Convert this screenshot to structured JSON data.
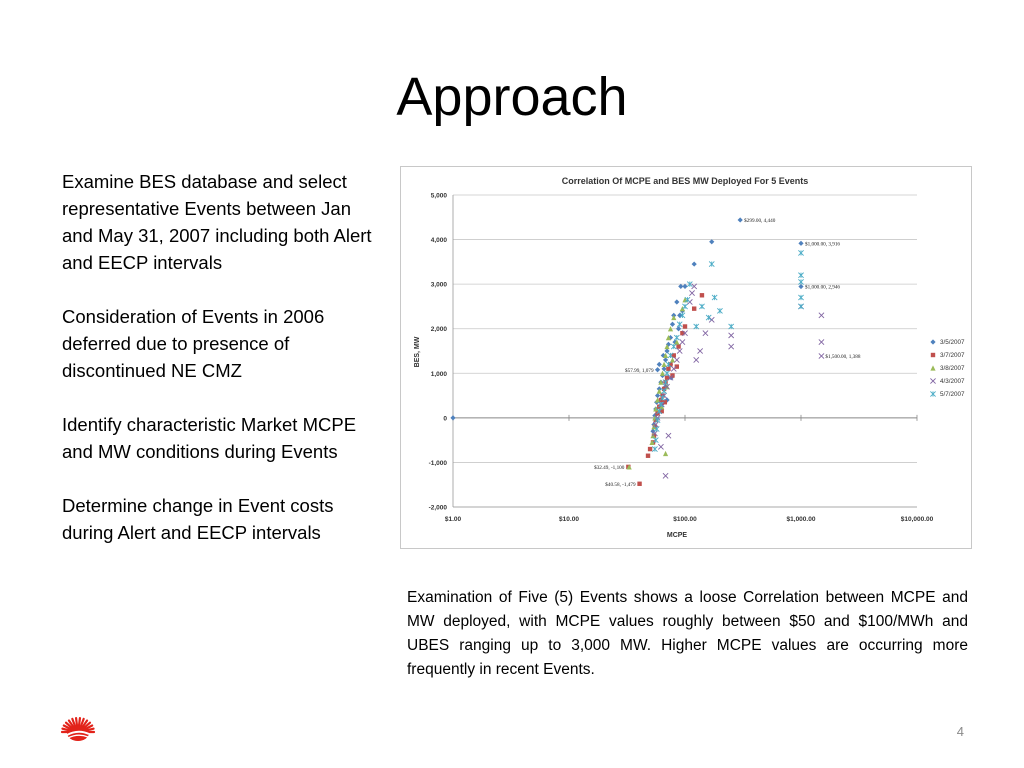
{
  "slide": {
    "title": "Approach",
    "bullets": [
      "Examine BES database and select representative Events between Jan and May 31, 2007 including both Alert and EECP intervals",
      "Consideration of Events in 2006 deferred due to presence of discontinued NE CMZ",
      "Identify characteristic Market MCPE and MW conditions during Events",
      "Determine change in Event costs during Alert and EECP intervals"
    ],
    "caption": "Examination of Five (5) Events shows a loose Correlation between MCPE and MW deployed, with MCPE values roughly between $50 and $100/MWh and UBES ranging up to 3,000 MW. Higher MCPE values are occurring more frequently in recent Events.",
    "page_number": "4",
    "logo_icon": "red-sunburst-logo-icon"
  },
  "chart_data": {
    "type": "scatter",
    "title": "Correlation Of MCPE and BES MW Deployed For 5 Events",
    "xlabel": "MCPE",
    "ylabel": "BES, MW",
    "x_scale": "log",
    "xlim": [
      1,
      10000
    ],
    "ylim": [
      -2000,
      5000
    ],
    "x_ticks": [
      1,
      10,
      100,
      1000,
      10000
    ],
    "x_tick_labels": [
      "$1.00",
      "$10.00",
      "$100.00",
      "$1,000.00",
      "$10,000.00"
    ],
    "y_ticks": [
      -2000,
      -1000,
      0,
      1000,
      2000,
      3000,
      4000,
      5000
    ],
    "y_tick_labels": [
      "-2,000",
      "-1,000",
      "0",
      "1,000",
      "2,000",
      "3,000",
      "4,000",
      "5,000"
    ],
    "grid": "horizontal",
    "legend_position": "right",
    "series": [
      {
        "name": "3/5/2007",
        "color": "#4f81bd",
        "marker": "diamond",
        "points": [
          [
            1,
            0
          ],
          [
            299,
            4440
          ],
          [
            1000,
            3916
          ],
          [
            1000,
            2946
          ],
          [
            170,
            3950
          ],
          [
            120,
            3450
          ],
          [
            100,
            2950
          ],
          [
            92,
            2950
          ],
          [
            85,
            2600
          ],
          [
            80,
            2300
          ],
          [
            78,
            2100
          ],
          [
            75,
            1800
          ],
          [
            72,
            1650
          ],
          [
            70,
            1500
          ],
          [
            68,
            1300
          ],
          [
            66,
            1100
          ],
          [
            64,
            950
          ],
          [
            62,
            800
          ],
          [
            60,
            650
          ],
          [
            58,
            500
          ],
          [
            57,
            350
          ],
          [
            56,
            200
          ],
          [
            55,
            50
          ],
          [
            54,
            -150
          ],
          [
            53,
            -300
          ],
          [
            60,
            1200
          ],
          [
            65,
            1400
          ],
          [
            75,
            1200
          ],
          [
            68,
            700
          ],
          [
            63,
            300
          ],
          [
            58,
            100
          ],
          [
            90,
            2300
          ],
          [
            82,
            1700
          ],
          [
            76,
            900
          ],
          [
            70,
            400
          ],
          [
            95,
            2400
          ],
          [
            88,
            2000
          ],
          [
            57.99,
            1079
          ]
        ]
      },
      {
        "name": "3/7/2007",
        "color": "#c0504d",
        "marker": "square",
        "points": [
          [
            32.49,
            -1100
          ],
          [
            40.58,
            -1479
          ],
          [
            140,
            2750
          ],
          [
            120,
            2450
          ],
          [
            95,
            1900
          ],
          [
            88,
            1600
          ],
          [
            80,
            1400
          ],
          [
            75,
            1200
          ],
          [
            72,
            1100
          ],
          [
            70,
            900
          ],
          [
            68,
            800
          ],
          [
            66,
            650
          ],
          [
            64,
            500
          ],
          [
            62,
            400
          ],
          [
            60,
            250
          ],
          [
            58,
            100
          ],
          [
            56,
            -50
          ],
          [
            55,
            -200
          ],
          [
            54,
            -400
          ],
          [
            53,
            -550
          ],
          [
            50,
            -700
          ],
          [
            48,
            -850
          ],
          [
            100,
            2050
          ],
          [
            85,
            1150
          ],
          [
            78,
            950
          ],
          [
            67,
            350
          ],
          [
            63,
            150
          ]
        ]
      },
      {
        "name": "3/8/2007",
        "color": "#9bbb59",
        "marker": "triangle",
        "points": [
          [
            33,
            -1100
          ],
          [
            68,
            -800
          ],
          [
            100,
            2650
          ],
          [
            95,
            2450
          ],
          [
            80,
            2250
          ],
          [
            75,
            2000
          ],
          [
            72,
            1800
          ],
          [
            70,
            1600
          ],
          [
            68,
            1400
          ],
          [
            66,
            1200
          ],
          [
            64,
            1000
          ],
          [
            62,
            800
          ],
          [
            60,
            600
          ],
          [
            58,
            400
          ],
          [
            56,
            200
          ],
          [
            55,
            0
          ],
          [
            54,
            -200
          ],
          [
            53,
            -400
          ],
          [
            52,
            -550
          ],
          [
            85,
            1700
          ],
          [
            78,
            1300
          ],
          [
            70,
            700
          ],
          [
            63,
            250
          ]
        ]
      },
      {
        "name": "4/3/2007",
        "color": "#8064a2",
        "marker": "x",
        "points": [
          [
            1500,
            1388
          ],
          [
            1500,
            2300
          ],
          [
            1500,
            1700
          ],
          [
            1000,
            2500
          ],
          [
            250,
            1850
          ],
          [
            250,
            1600
          ],
          [
            170,
            2200
          ],
          [
            150,
            1900
          ],
          [
            135,
            1500
          ],
          [
            125,
            1300
          ],
          [
            120,
            2950
          ],
          [
            115,
            2800
          ],
          [
            110,
            2600
          ],
          [
            100,
            1900
          ],
          [
            95,
            1700
          ],
          [
            90,
            1500
          ],
          [
            85,
            1300
          ],
          [
            80,
            1100
          ],
          [
            75,
            900
          ],
          [
            70,
            700
          ],
          [
            66,
            500
          ],
          [
            63,
            300
          ],
          [
            60,
            150
          ],
          [
            58,
            0
          ],
          [
            56,
            -150
          ],
          [
            55,
            -350
          ],
          [
            72,
            -400
          ],
          [
            68,
            -1300
          ],
          [
            62,
            -650
          ]
        ]
      },
      {
        "name": "5/7/2007",
        "color": "#4bacc6",
        "marker": "asterisk",
        "points": [
          [
            1000,
            3700
          ],
          [
            1000,
            3200
          ],
          [
            1000,
            3050
          ],
          [
            1000,
            2700
          ],
          [
            1000,
            2500
          ],
          [
            250,
            2050
          ],
          [
            200,
            2400
          ],
          [
            180,
            2700
          ],
          [
            170,
            3450
          ],
          [
            160,
            2250
          ],
          [
            140,
            2500
          ],
          [
            125,
            2050
          ],
          [
            110,
            3000
          ],
          [
            105,
            2650
          ],
          [
            100,
            2500
          ],
          [
            95,
            2300
          ],
          [
            90,
            2100
          ],
          [
            85,
            1800
          ],
          [
            80,
            1600
          ],
          [
            75,
            1400
          ],
          [
            72,
            1200
          ],
          [
            70,
            1000
          ],
          [
            68,
            800
          ],
          [
            66,
            600
          ],
          [
            64,
            450
          ],
          [
            62,
            300
          ],
          [
            60,
            150
          ],
          [
            58,
            -50
          ],
          [
            57,
            -250
          ],
          [
            56,
            -500
          ],
          [
            55,
            -700
          ]
        ]
      }
    ],
    "annotations": [
      {
        "text": "$299.00, 4,440",
        "x": 299,
        "y": 4440
      },
      {
        "text": "$1,000.00, 3,916",
        "x": 1000,
        "y": 3916
      },
      {
        "text": "$1,000.00, 2,946",
        "x": 1000,
        "y": 2946
      },
      {
        "text": "$1,500.00, 1,388",
        "x": 1500,
        "y": 1388
      },
      {
        "text": "$57.99, 1,079",
        "x": 57.99,
        "y": 1079
      },
      {
        "text": "$32.49, -1,100",
        "x": 32.49,
        "y": -1100
      },
      {
        "text": "$40.58, -1,479",
        "x": 40.58,
        "y": -1479
      }
    ]
  }
}
